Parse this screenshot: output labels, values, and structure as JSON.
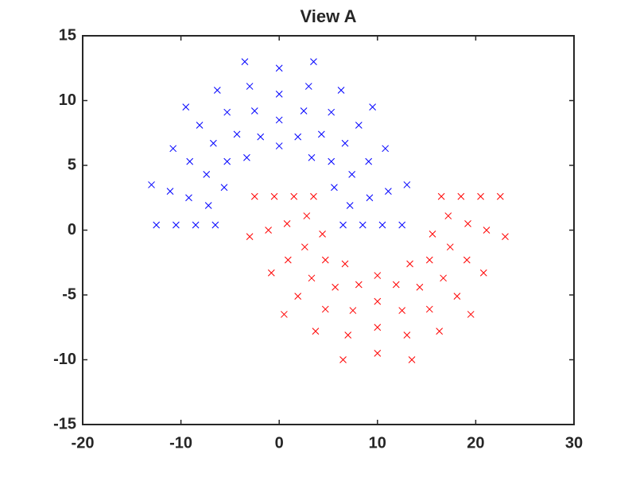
{
  "chart_data": {
    "type": "scatter",
    "title": "View A",
    "xlim": [
      -20,
      30
    ],
    "xticks": [
      -20,
      -10,
      0,
      10,
      20,
      30
    ],
    "ylim": [
      -15,
      15
    ],
    "yticks": [
      -15,
      -10,
      -5,
      0,
      5,
      10,
      15
    ],
    "marker": "x",
    "series": [
      {
        "color": "#0000ff",
        "x": [
          6.5,
          8.5,
          10.5,
          12.5,
          5.6,
          7.4,
          9.1,
          10.8,
          3.3,
          4.3,
          5.3,
          6.3,
          0,
          0,
          0,
          0,
          -3.3,
          -4.3,
          -5.3,
          -6.3,
          -5.6,
          -7.4,
          -9.1,
          -10.8,
          -6.5,
          -8.5,
          -10.5,
          -12.5,
          7.2,
          9.2,
          11.1,
          13.0,
          5.3,
          6.7,
          8.1,
          9.5,
          1.9,
          2.5,
          3.0,
          3.5,
          -1.9,
          -2.5,
          -3.0,
          -3.5,
          -5.3,
          -6.7,
          -8.1,
          -9.5,
          -7.2,
          -9.2,
          -11.1,
          -13.0
        ],
        "y": [
          0.4,
          0.4,
          0.4,
          0.4,
          3.3,
          4.3,
          5.3,
          6.3,
          5.6,
          7.4,
          9.1,
          10.8,
          6.5,
          8.5,
          10.5,
          12.5,
          5.6,
          7.4,
          9.1,
          10.8,
          3.3,
          4.3,
          5.3,
          6.3,
          0.4,
          0.4,
          0.4,
          0.4,
          1.9,
          2.5,
          3.0,
          3.5,
          5.3,
          6.7,
          8.1,
          9.5,
          7.2,
          9.2,
          11.1,
          13.0,
          7.2,
          9.2,
          11.1,
          13.0,
          5.3,
          6.7,
          8.1,
          9.5,
          1.9,
          2.5,
          3.0,
          3.5
        ]
      },
      {
        "color": "#ff0000",
        "x": [
          16.5,
          18.5,
          20.5,
          22.5,
          15.6,
          17.4,
          19.1,
          20.8,
          13.3,
          14.3,
          15.3,
          16.3,
          10,
          10,
          10,
          10,
          6.7,
          5.7,
          4.7,
          3.7,
          4.4,
          2.6,
          0.9,
          -0.8,
          3.5,
          1.5,
          -0.5,
          -2.5,
          17.2,
          19.2,
          21.1,
          23.0,
          15.3,
          16.7,
          18.1,
          19.5,
          11.9,
          12.5,
          13.0,
          13.5,
          8.1,
          7.5,
          7.0,
          6.5,
          4.7,
          3.3,
          1.9,
          0.5,
          2.8,
          0.8,
          -1.1,
          -3.0
        ],
        "y": [
          2.6,
          2.6,
          2.6,
          2.6,
          -0.3,
          -1.3,
          -2.3,
          -3.3,
          -2.6,
          -4.4,
          -6.1,
          -7.8,
          -3.5,
          -5.5,
          -7.5,
          -9.5,
          -2.6,
          -4.4,
          -6.1,
          -7.8,
          -0.3,
          -1.3,
          -2.3,
          -3.3,
          2.6,
          2.6,
          2.6,
          2.6,
          1.1,
          0.5,
          0,
          -0.5,
          -2.3,
          -3.7,
          -5.1,
          -6.5,
          -4.2,
          -6.2,
          -8.1,
          -10.0,
          -4.2,
          -6.2,
          -8.1,
          -10.0,
          -2.3,
          -3.7,
          -5.1,
          -6.5,
          1.1,
          0.5,
          0,
          -0.5
        ]
      }
    ]
  }
}
